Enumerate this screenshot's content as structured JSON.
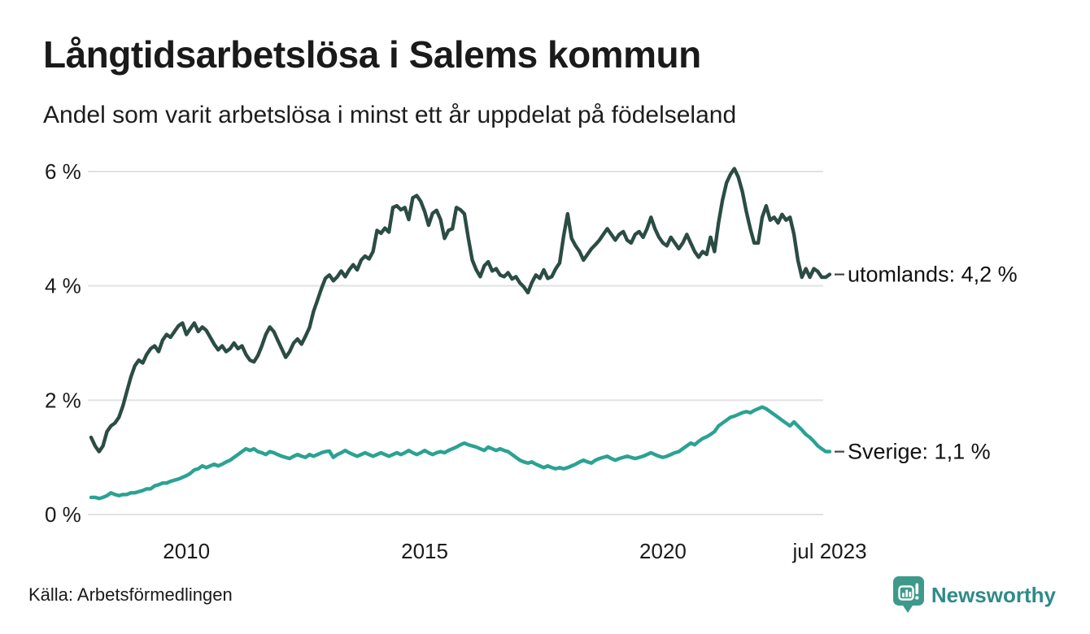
{
  "title": "Långtidsarbetslösa i Salems kommun",
  "subtitle": "Andel som varit arbetslösa i minst ett år uppdelat på födelseland",
  "source": "Källa: Arbetsförmedlingen",
  "branding": {
    "name": "Newsworthy",
    "logo_color": "#3d9a8a",
    "text_color": "#2e8b89"
  },
  "colors": {
    "grid": "#e2e2e2",
    "text": "#1a1a1a",
    "tick_dash": "#444444"
  },
  "chart_data": {
    "type": "line",
    "title": "Långtidsarbetslösa i Salems kommun",
    "subtitle": "Andel som varit arbetslösa i minst ett år uppdelat på födelseland",
    "x_unit": "month",
    "x_start": "2008-01",
    "x_end": "2023-07",
    "ylim": [
      0,
      6.2
    ],
    "grid": true,
    "yticks": [
      {
        "label": "0 %",
        "value": 0
      },
      {
        "label": "2 %",
        "value": 2
      },
      {
        "label": "4 %",
        "value": 4
      },
      {
        "label": "6 %",
        "value": 6
      }
    ],
    "xticks": [
      {
        "label": "2010",
        "index": 24
      },
      {
        "label": "2015",
        "index": 84
      },
      {
        "label": "2020",
        "index": 144
      },
      {
        "label": "jul 2023",
        "index": 186
      }
    ],
    "series": [
      {
        "name": "utomlands",
        "annotation": "utomlands: 4,2 %",
        "last_value_label": "4,2 %",
        "color": "#2b4c44",
        "values": [
          1.35,
          1.2,
          1.1,
          1.2,
          1.45,
          1.55,
          1.6,
          1.7,
          1.9,
          2.15,
          2.4,
          2.6,
          2.7,
          2.65,
          2.8,
          2.9,
          2.95,
          2.85,
          3.05,
          3.15,
          3.1,
          3.2,
          3.3,
          3.35,
          3.15,
          3.25,
          3.35,
          3.2,
          3.28,
          3.22,
          3.1,
          2.98,
          2.88,
          2.95,
          2.85,
          2.9,
          3.0,
          2.9,
          2.95,
          2.8,
          2.7,
          2.67,
          2.78,
          2.95,
          3.15,
          3.28,
          3.2,
          3.05,
          2.9,
          2.75,
          2.85,
          3.0,
          3.07,
          2.98,
          3.12,
          3.27,
          3.55,
          3.75,
          3.95,
          4.13,
          4.19,
          4.09,
          4.16,
          4.26,
          4.16,
          4.28,
          4.37,
          4.28,
          4.45,
          4.52,
          4.47,
          4.6,
          4.97,
          4.92,
          5.01,
          4.94,
          5.37,
          5.4,
          5.33,
          5.37,
          5.16,
          5.54,
          5.58,
          5.48,
          5.3,
          5.06,
          5.27,
          5.32,
          5.16,
          4.83,
          4.97,
          5.0,
          5.37,
          5.33,
          5.26,
          4.83,
          4.45,
          4.28,
          4.16,
          4.35,
          4.42,
          4.26,
          4.3,
          4.19,
          4.16,
          4.23,
          4.12,
          4.16,
          4.05,
          3.98,
          3.88,
          4.06,
          4.19,
          4.13,
          4.28,
          4.13,
          4.16,
          4.3,
          4.4,
          4.87,
          5.26,
          4.83,
          4.7,
          4.6,
          4.45,
          4.55,
          4.65,
          4.72,
          4.8,
          4.9,
          5.0,
          4.9,
          4.8,
          4.9,
          4.95,
          4.8,
          4.75,
          4.9,
          4.95,
          4.85,
          5.0,
          5.2,
          5.0,
          4.85,
          4.75,
          4.7,
          4.85,
          4.75,
          4.65,
          4.75,
          4.9,
          4.75,
          4.6,
          4.5,
          4.6,
          4.55,
          4.85,
          4.6,
          5.1,
          5.5,
          5.8,
          5.95,
          6.05,
          5.9,
          5.65,
          5.3,
          5.0,
          4.75,
          4.75,
          5.2,
          5.4,
          5.15,
          5.2,
          5.1,
          5.25,
          5.15,
          5.2,
          4.9,
          4.45,
          4.15,
          4.3,
          4.15,
          4.3,
          4.25,
          4.15,
          4.15,
          4.2
        ]
      },
      {
        "name": "Sverige",
        "annotation": "Sverige: 1,1 %",
        "last_value_label": "1,1 %",
        "color": "#2ba293",
        "values": [
          0.3,
          0.3,
          0.28,
          0.3,
          0.33,
          0.38,
          0.35,
          0.33,
          0.35,
          0.35,
          0.38,
          0.38,
          0.4,
          0.42,
          0.45,
          0.45,
          0.5,
          0.52,
          0.55,
          0.55,
          0.58,
          0.6,
          0.62,
          0.65,
          0.68,
          0.72,
          0.78,
          0.8,
          0.85,
          0.82,
          0.85,
          0.88,
          0.85,
          0.88,
          0.92,
          0.95,
          1.0,
          1.05,
          1.1,
          1.15,
          1.12,
          1.15,
          1.1,
          1.08,
          1.05,
          1.1,
          1.08,
          1.05,
          1.02,
          1.0,
          0.98,
          1.02,
          1.05,
          1.02,
          1.0,
          1.05,
          1.02,
          1.05,
          1.08,
          1.1,
          1.11,
          1.0,
          1.05,
          1.08,
          1.12,
          1.08,
          1.05,
          1.02,
          1.05,
          1.08,
          1.05,
          1.02,
          1.05,
          1.08,
          1.05,
          1.02,
          1.05,
          1.08,
          1.05,
          1.08,
          1.12,
          1.08,
          1.05,
          1.08,
          1.12,
          1.08,
          1.05,
          1.08,
          1.1,
          1.08,
          1.12,
          1.15,
          1.18,
          1.22,
          1.25,
          1.22,
          1.2,
          1.18,
          1.15,
          1.12,
          1.18,
          1.15,
          1.12,
          1.15,
          1.12,
          1.1,
          1.05,
          1.0,
          0.95,
          0.92,
          0.9,
          0.92,
          0.88,
          0.85,
          0.82,
          0.85,
          0.82,
          0.8,
          0.82,
          0.8,
          0.82,
          0.85,
          0.88,
          0.92,
          0.95,
          0.92,
          0.9,
          0.95,
          0.98,
          1.0,
          1.02,
          0.98,
          0.95,
          0.98,
          1.0,
          1.02,
          1.0,
          0.98,
          1.0,
          1.02,
          1.05,
          1.08,
          1.05,
          1.02,
          1.0,
          1.02,
          1.05,
          1.08,
          1.1,
          1.15,
          1.2,
          1.25,
          1.22,
          1.28,
          1.33,
          1.36,
          1.4,
          1.45,
          1.55,
          1.6,
          1.65,
          1.7,
          1.72,
          1.75,
          1.78,
          1.8,
          1.78,
          1.82,
          1.85,
          1.88,
          1.85,
          1.8,
          1.75,
          1.7,
          1.65,
          1.6,
          1.55,
          1.62,
          1.55,
          1.48,
          1.4,
          1.35,
          1.28,
          1.2,
          1.15,
          1.1,
          1.1
        ]
      }
    ]
  }
}
